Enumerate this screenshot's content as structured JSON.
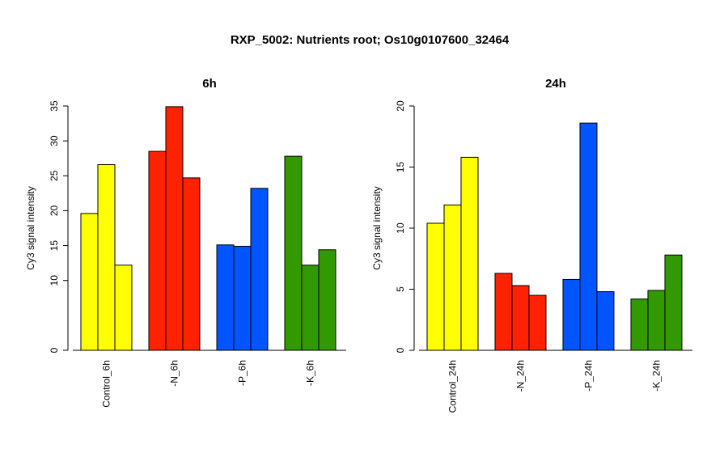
{
  "title": "RXP_5002: Nutrients root; Os10g0107600_32464",
  "colors": {
    "control": "#ffff00",
    "nitrogen": "#ff2200",
    "phosphorus": "#0055ff",
    "potassium": "#339900"
  },
  "chart_data": [
    {
      "type": "bar",
      "title": "6h",
      "ylabel": "Cy3 signal intensity",
      "ylim": [
        0,
        35
      ],
      "yticks": [
        "0",
        "10",
        "15",
        "20",
        "25",
        "30",
        "35"
      ],
      "grid": false,
      "categories": [
        "Control_6h",
        "-N_6h",
        "-P_6h",
        "-K_6h"
      ],
      "groups": [
        {
          "category": "Control_6h",
          "color": "#ffff00",
          "values": [
            19.6,
            26.6,
            12.2
          ]
        },
        {
          "category": "-N_6h",
          "color": "#ff2200",
          "values": [
            28.5,
            34.9,
            24.7
          ]
        },
        {
          "category": "-P_6h",
          "color": "#0055ff",
          "values": [
            15.1,
            14.9,
            23.2
          ]
        },
        {
          "category": "-K_6h",
          "color": "#339900",
          "values": [
            27.8,
            12.2,
            14.4
          ]
        }
      ]
    },
    {
      "type": "bar",
      "title": "24h",
      "ylabel": "Cy3 signal intensity",
      "ylim": [
        0,
        20
      ],
      "yticks": [
        "0",
        "5",
        "10",
        "15",
        "20"
      ],
      "grid": false,
      "categories": [
        "Control_24h",
        "-N_24h",
        "-P_24h",
        "-K_24h"
      ],
      "groups": [
        {
          "category": "Control_24h",
          "color": "#ffff00",
          "values": [
            10.4,
            11.9,
            15.8
          ]
        },
        {
          "category": "-N_24h",
          "color": "#ff2200",
          "values": [
            6.3,
            5.3,
            4.5
          ]
        },
        {
          "category": "-P_24h",
          "color": "#0055ff",
          "values": [
            5.8,
            18.6,
            4.8
          ]
        },
        {
          "category": "-K_24h",
          "color": "#339900",
          "values": [
            4.2,
            4.9,
            7.8
          ]
        }
      ]
    }
  ]
}
